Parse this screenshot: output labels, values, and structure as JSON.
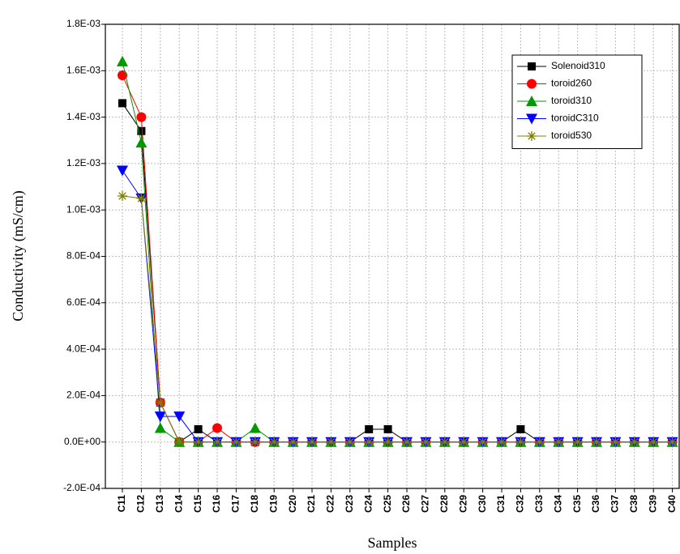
{
  "chart_data": {
    "type": "line",
    "y_label": "Conductivity (mS/cm)",
    "x_label": "Samples",
    "categories": [
      "C11",
      "C12",
      "C13",
      "C14",
      "C15",
      "C16",
      "C17",
      "C18",
      "C19",
      "C20",
      "C21",
      "C22",
      "C23",
      "C24",
      "C25",
      "C26",
      "C27",
      "C28",
      "C29",
      "C30",
      "C31",
      "C32",
      "C33",
      "C34",
      "C35",
      "C36",
      "C37",
      "C38",
      "C39",
      "C40"
    ],
    "ylim": [
      -0.0002,
      0.0018
    ],
    "yticks": [
      {
        "value": -0.0002,
        "label": "-2.0E-04"
      },
      {
        "value": 0,
        "label": "0.0E+00"
      },
      {
        "value": 0.0002,
        "label": "2.0E-04"
      },
      {
        "value": 0.0004,
        "label": "4.0E-04"
      },
      {
        "value": 0.0006,
        "label": "6.0E-04"
      },
      {
        "value": 0.0008,
        "label": "8.0E-04"
      },
      {
        "value": 0.001,
        "label": "1.0E-03"
      },
      {
        "value": 0.0012,
        "label": "1.2E-03"
      },
      {
        "value": 0.0014,
        "label": "1.4E-03"
      },
      {
        "value": 0.0016,
        "label": "1.6E-03"
      },
      {
        "value": 0.0018,
        "label": "1.8E-03"
      }
    ],
    "grid": true,
    "legend": "upper right",
    "series": [
      {
        "name": "Solenoid310",
        "color": "#000000",
        "marker": "square",
        "values": [
          0.00146,
          0.00134,
          0.00017,
          0,
          5.5e-05,
          0,
          0,
          0,
          0,
          0,
          0,
          0,
          0,
          5.5e-05,
          5.5e-05,
          0,
          0,
          0,
          0,
          0,
          0,
          5.5e-05,
          0,
          0,
          0,
          0,
          0,
          0,
          0,
          0
        ]
      },
      {
        "name": "toroid260",
        "color": "#ff0000",
        "marker": "circle",
        "values": [
          0.00158,
          0.0014,
          0.00017,
          0,
          0,
          6e-05,
          0,
          0,
          0,
          0,
          0,
          0,
          0,
          0,
          0,
          0,
          0,
          0,
          0,
          0,
          0,
          0,
          0,
          0,
          0,
          0,
          0,
          0,
          0,
          0
        ]
      },
      {
        "name": "toroid310",
        "color": "#009900",
        "marker": "triangle-up",
        "values": [
          0.00164,
          0.00129,
          6e-05,
          0,
          0,
          0,
          0,
          6e-05,
          0,
          0,
          0,
          0,
          0,
          0,
          0,
          0,
          0,
          0,
          0,
          0,
          0,
          0,
          0,
          0,
          0,
          0,
          0,
          0,
          0,
          0
        ]
      },
      {
        "name": "toroidC310",
        "color": "#0000ff",
        "marker": "triangle-down",
        "values": [
          0.00117,
          0.00105,
          0.00011,
          0.00011,
          0,
          0,
          0,
          0,
          0,
          0,
          0,
          0,
          0,
          0,
          0,
          0,
          0,
          0,
          0,
          0,
          0,
          0,
          0,
          0,
          0,
          0,
          0,
          0,
          0,
          0
        ]
      },
      {
        "name": "toroid530",
        "color": "#808000",
        "marker": "star",
        "values": [
          0.00106,
          0.00105,
          0.00017,
          0,
          0,
          0,
          0,
          0,
          0,
          0,
          0,
          0,
          0,
          0,
          0,
          0,
          0,
          0,
          0,
          0,
          0,
          0,
          0,
          0,
          0,
          0,
          0,
          0,
          0,
          0
        ]
      }
    ]
  }
}
